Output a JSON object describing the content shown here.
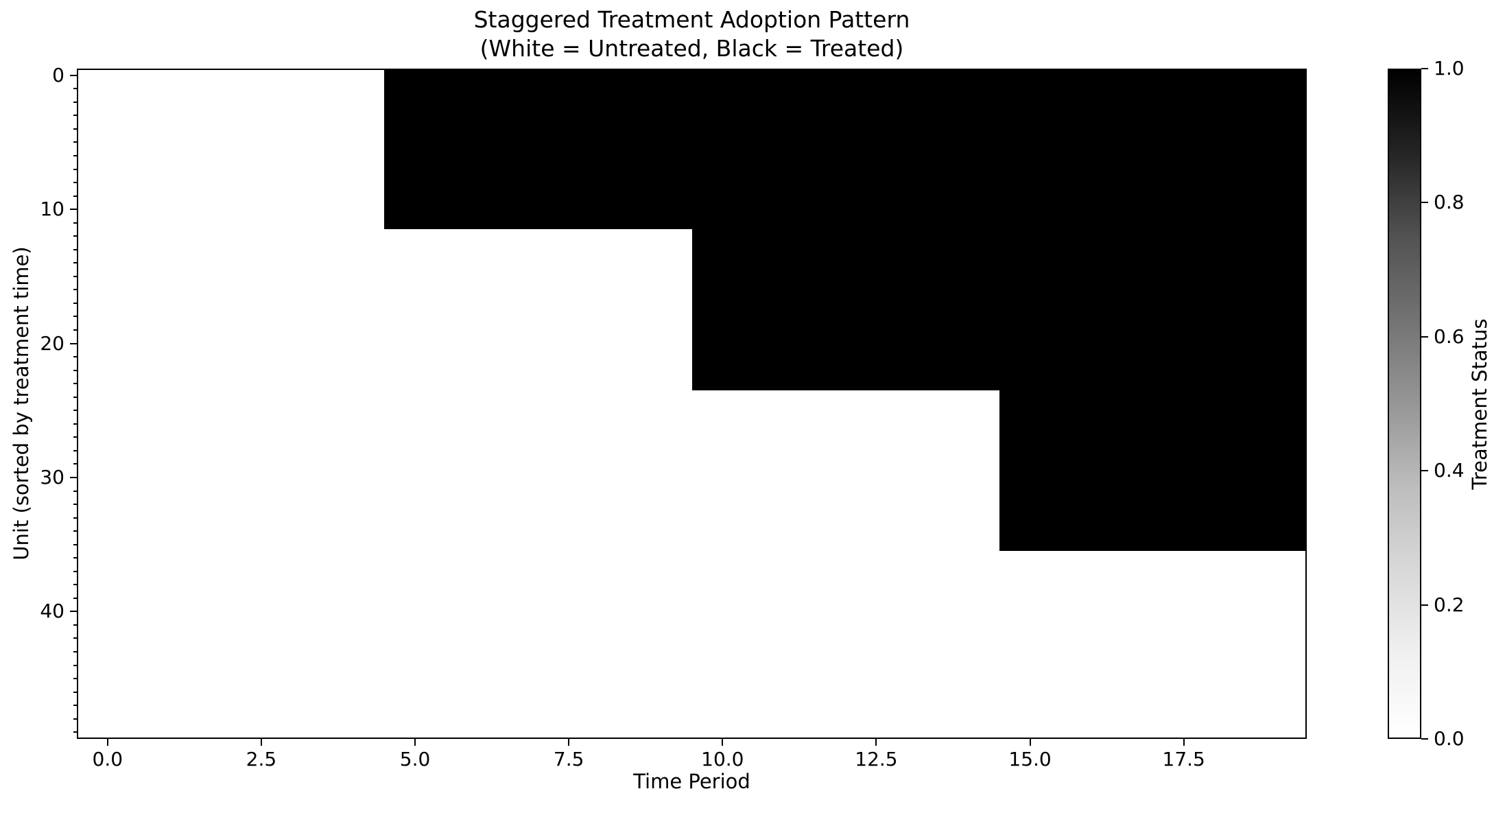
{
  "title": {
    "line1": "Staggered Treatment Adoption Pattern",
    "line2": "(White = Untreated, Black = Treated)"
  },
  "axes": {
    "xlabel": "Time Period",
    "ylabel": "Unit (sorted by treatment time)"
  },
  "colorbar": {
    "label": "Treatment Status",
    "tick_labels": [
      "1.0",
      "0.8",
      "0.6",
      "0.4",
      "0.2",
      "0.0"
    ]
  },
  "colors": {
    "treated": "#000000",
    "untreated": "#ffffff",
    "axis": "#000000",
    "text": "#000000",
    "background": "#ffffff"
  },
  "chart_data": {
    "type": "heatmap",
    "title": "Staggered Treatment Adoption Pattern (White = Untreated, Black = Treated)",
    "xlabel": "Time Period",
    "ylabel": "Unit (sorted by treatment time)",
    "n_units": 50,
    "n_periods": 20,
    "xlim": [
      -0.5,
      19.5
    ],
    "ylim": [
      49.5,
      -0.5
    ],
    "grid": false,
    "x_ticks": [
      {
        "value": 0,
        "label": "0.0"
      },
      {
        "value": 2.5,
        "label": "2.5"
      },
      {
        "value": 5,
        "label": "5.0"
      },
      {
        "value": 7.5,
        "label": "7.5"
      },
      {
        "value": 10,
        "label": "10.0"
      },
      {
        "value": 12.5,
        "label": "12.5"
      },
      {
        "value": 15,
        "label": "15.0"
      },
      {
        "value": 17.5,
        "label": "17.5"
      }
    ],
    "y_ticks": [
      {
        "value": 0,
        "label": "0"
      },
      {
        "value": 10,
        "label": "10"
      },
      {
        "value": 20,
        "label": "20"
      },
      {
        "value": 30,
        "label": "30"
      },
      {
        "value": 40,
        "label": "40"
      }
    ],
    "y_minor_tick_step": 1,
    "value_encoding": {
      "0": "untreated (white)",
      "1": "treated (black)"
    },
    "cohorts": [
      {
        "units_from": 0,
        "units_to": 11,
        "first_treated_period": 5
      },
      {
        "units_from": 12,
        "units_to": 23,
        "first_treated_period": 10
      },
      {
        "units_from": 24,
        "units_to": 35,
        "first_treated_period": 15
      },
      {
        "units_from": 36,
        "units_to": 49,
        "first_treated_period": null
      }
    ],
    "first_treated_period_by_unit": [
      5,
      5,
      5,
      5,
      5,
      5,
      5,
      5,
      5,
      5,
      5,
      5,
      10,
      10,
      10,
      10,
      10,
      10,
      10,
      10,
      10,
      10,
      10,
      10,
      15,
      15,
      15,
      15,
      15,
      15,
      15,
      15,
      15,
      15,
      15,
      15,
      null,
      null,
      null,
      null,
      null,
      null,
      null,
      null,
      null,
      null,
      null,
      null,
      null,
      null
    ],
    "colorbar": {
      "label": "Treatment Status",
      "range": [
        0,
        1
      ],
      "ticks": [
        0.0,
        0.2,
        0.4,
        0.6,
        0.8,
        1.0
      ]
    },
    "legend_position": "none"
  }
}
